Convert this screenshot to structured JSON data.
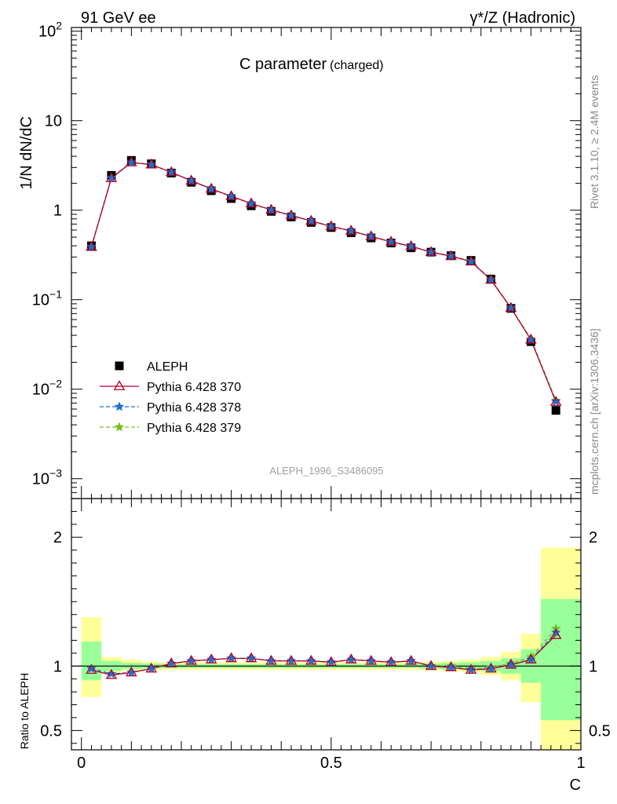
{
  "header": {
    "left": "91 GeV ee",
    "right": "γ*/Z (Hadronic)"
  },
  "side": {
    "rivet": "Rivet 3.1.10, ≥ 2.4M events",
    "mcplots": "mcplots.cern.ch [arXiv:1306.3436]"
  },
  "chart_data": {
    "type": "line",
    "title": "C parameter",
    "title_suffix": "(charged)",
    "analysis_id": "ALEPH_1996_S3486095",
    "ylabel": "1/N dN/dC",
    "ratio_ylabel": "Ratio to ALEPH",
    "xlabel": "C",
    "yscale": "log",
    "ylim": [
      0.0006,
      110
    ],
    "ratio_ylim": [
      0.35,
      2.3
    ],
    "xlim": [
      -0.02,
      1.0
    ],
    "legend_position": "mid-left",
    "x_ticks": [
      "0",
      "0.5",
      "1"
    ],
    "ratio_ticks": [
      "0.5",
      "1",
      "2"
    ],
    "y_ticks": [
      {
        "value": 100,
        "mant": "10",
        "exp": "2"
      },
      {
        "value": 10,
        "mant": "10",
        "exp": ""
      },
      {
        "value": 1,
        "mant": "1",
        "exp": ""
      },
      {
        "value": 0.1,
        "mant": "10",
        "exp": "−1"
      },
      {
        "value": 0.01,
        "mant": "10",
        "exp": "−2"
      },
      {
        "value": 0.001,
        "mant": "10",
        "exp": "−3"
      }
    ],
    "x": [
      0.02,
      0.06,
      0.1,
      0.14,
      0.18,
      0.22,
      0.26,
      0.3,
      0.34,
      0.38,
      0.42,
      0.46,
      0.5,
      0.54,
      0.58,
      0.62,
      0.66,
      0.7,
      0.74,
      0.78,
      0.82,
      0.86,
      0.9,
      0.95
    ],
    "bin_edges": [
      0,
      0.04,
      0.08,
      0.12,
      0.16,
      0.2,
      0.24,
      0.28,
      0.32,
      0.36,
      0.4,
      0.44,
      0.48,
      0.52,
      0.56,
      0.6,
      0.64,
      0.68,
      0.72,
      0.76,
      0.8,
      0.84,
      0.88,
      0.92,
      1.0
    ],
    "data": {
      "name": "ALEPH",
      "values": [
        0.4,
        2.45,
        3.6,
        3.3,
        2.6,
        2.05,
        1.65,
        1.35,
        1.12,
        0.97,
        0.84,
        0.73,
        0.64,
        0.56,
        0.49,
        0.43,
        0.38,
        0.34,
        0.31,
        0.275,
        0.17,
        0.08,
        0.034,
        0.0058
      ]
    },
    "band_inner": [
      [
        0.89,
        1.19
      ],
      [
        0.96,
        1.04
      ],
      [
        0.975,
        1.025
      ],
      [
        0.98,
        1.02
      ],
      [
        0.985,
        1.015
      ],
      [
        0.985,
        1.015
      ],
      [
        0.985,
        1.015
      ],
      [
        0.985,
        1.015
      ],
      [
        0.985,
        1.015
      ],
      [
        0.985,
        1.015
      ],
      [
        0.985,
        1.015
      ],
      [
        0.985,
        1.015
      ],
      [
        0.985,
        1.015
      ],
      [
        0.985,
        1.015
      ],
      [
        0.985,
        1.015
      ],
      [
        0.985,
        1.015
      ],
      [
        0.985,
        1.015
      ],
      [
        0.98,
        1.02
      ],
      [
        0.975,
        1.025
      ],
      [
        0.97,
        1.03
      ],
      [
        0.96,
        1.04
      ],
      [
        0.94,
        1.06
      ],
      [
        0.87,
        1.13
      ],
      [
        0.58,
        1.52
      ]
    ],
    "band_outer": [
      [
        0.76,
        1.38
      ],
      [
        0.94,
        1.07
      ],
      [
        0.96,
        1.05
      ],
      [
        0.965,
        1.035
      ],
      [
        0.97,
        1.03
      ],
      [
        0.97,
        1.03
      ],
      [
        0.97,
        1.03
      ],
      [
        0.97,
        1.03
      ],
      [
        0.97,
        1.03
      ],
      [
        0.97,
        1.03
      ],
      [
        0.97,
        1.03
      ],
      [
        0.97,
        1.03
      ],
      [
        0.97,
        1.03
      ],
      [
        0.97,
        1.03
      ],
      [
        0.97,
        1.03
      ],
      [
        0.97,
        1.03
      ],
      [
        0.97,
        1.03
      ],
      [
        0.965,
        1.035
      ],
      [
        0.96,
        1.04
      ],
      [
        0.95,
        1.05
      ],
      [
        0.93,
        1.07
      ],
      [
        0.89,
        1.11
      ],
      [
        0.72,
        1.25
      ],
      [
        0.3,
        1.92
      ]
    ],
    "series": [
      {
        "name": "Pythia 6.428 370",
        "color": "#b0002a",
        "marker": "triangle-open",
        "dash": "solid",
        "ratio": [
          0.97,
          0.93,
          0.95,
          0.98,
          1.02,
          1.04,
          1.05,
          1.06,
          1.06,
          1.04,
          1.04,
          1.04,
          1.03,
          1.05,
          1.04,
          1.03,
          1.04,
          1.0,
          0.99,
          0.97,
          0.98,
          1.01,
          1.05,
          1.24
        ]
      },
      {
        "name": "Pythia 6.428 378",
        "color": "#1f6fd0",
        "marker": "star",
        "dash": "5,3",
        "ratio": [
          0.98,
          0.94,
          0.95,
          0.98,
          1.02,
          1.04,
          1.05,
          1.06,
          1.06,
          1.04,
          1.04,
          1.04,
          1.03,
          1.05,
          1.04,
          1.03,
          1.04,
          1.0,
          0.99,
          0.97,
          0.98,
          1.01,
          1.05,
          1.26
        ]
      },
      {
        "name": "Pythia 6.428 379",
        "color": "#7bbd1f",
        "marker": "star",
        "dash": "5,3",
        "ratio": [
          0.98,
          0.94,
          0.95,
          0.98,
          1.02,
          1.04,
          1.05,
          1.06,
          1.06,
          1.04,
          1.04,
          1.04,
          1.03,
          1.05,
          1.04,
          1.03,
          1.04,
          1.0,
          1.0,
          0.98,
          0.99,
          1.02,
          1.07,
          1.29
        ]
      }
    ],
    "colors": {
      "band_inner": "#99ff99",
      "band_outer": "#ffff99",
      "data": "#000000"
    }
  }
}
